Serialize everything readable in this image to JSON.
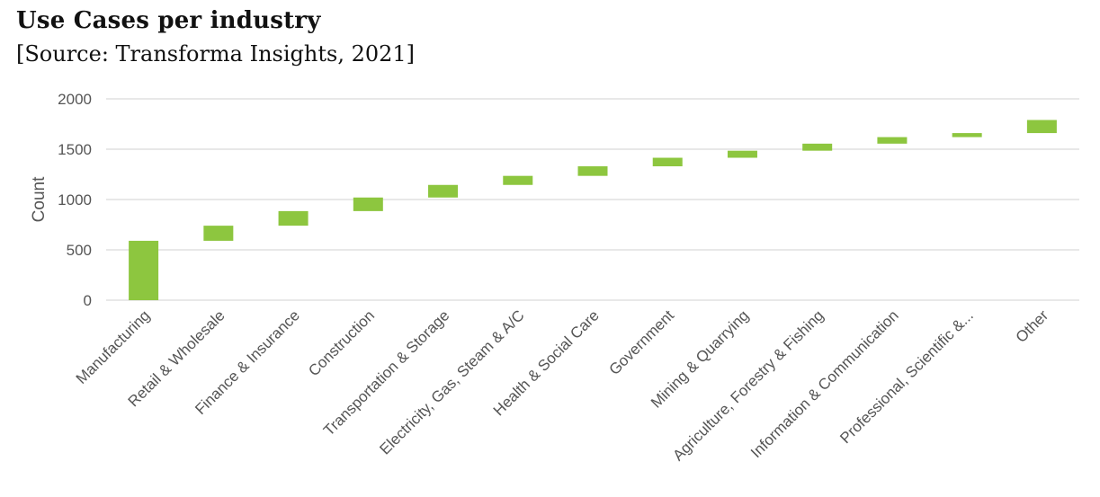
{
  "header": {
    "title": "Use Cases per industry",
    "subtitle": "[Source: Transforma Insights, 2021]"
  },
  "chart_data": {
    "type": "bar",
    "subtype": "waterfall",
    "title": "Use Cases per industry",
    "subtitle": "[Source: Transforma Insights, 2021]",
    "xlabel": "",
    "ylabel": "Count",
    "ylim": [
      0,
      2000
    ],
    "yticks": [
      0,
      500,
      1000,
      1500,
      2000
    ],
    "grid": true,
    "bar_color": "#8DC63F",
    "gridline_color": "#d9d9d9",
    "categories": [
      "Manufacturing",
      "Retail & Wholesale",
      "Finance & Insurance",
      "Construction",
      "Transportation & Storage",
      "Electricity, Gas, Steam & A/C",
      "Health & Social Care",
      "Government",
      "Mining & Quarrying",
      "Agriculture, Forestry & Fishing",
      "Information & Communication",
      "Professional, Scientific &...",
      "Other"
    ],
    "base": [
      0,
      590,
      740,
      885,
      1020,
      1145,
      1235,
      1330,
      1415,
      1485,
      1555,
      1620,
      1660
    ],
    "values": [
      590,
      150,
      145,
      135,
      125,
      90,
      95,
      85,
      70,
      70,
      65,
      40,
      130
    ],
    "cumulative": [
      590,
      740,
      885,
      1020,
      1145,
      1235,
      1330,
      1415,
      1485,
      1555,
      1620,
      1660,
      1790
    ]
  }
}
